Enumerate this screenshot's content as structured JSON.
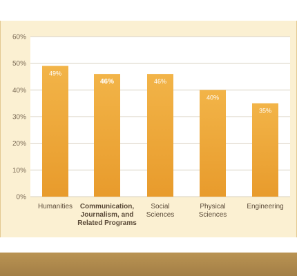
{
  "chart_data": {
    "type": "bar",
    "categories": [
      [
        "Humanities"
      ],
      [
        "Communication,",
        "Journalism, and",
        "Related Programs"
      ],
      [
        "Social",
        "Sciences"
      ],
      [
        "Physical",
        "Sciences"
      ],
      [
        "Engineering"
      ]
    ],
    "category_emphasis": [
      false,
      true,
      false,
      false,
      false
    ],
    "values": [
      49,
      46,
      46,
      40,
      35
    ],
    "value_labels": [
      "49%",
      "46%",
      "46%",
      "40%",
      "35%"
    ],
    "ylim": [
      0,
      60
    ],
    "yticks": [
      0,
      10,
      20,
      30,
      40,
      50,
      60
    ],
    "ytick_labels": [
      "0%",
      "10%",
      "20%",
      "30%",
      "40%",
      "50%",
      "60%"
    ],
    "grid": true,
    "title": "",
    "xlabel": "",
    "ylabel": "",
    "colors": {
      "bar_top": "#f2b448",
      "bar_bottom": "#e89b2c",
      "plot_background": "#ffffff",
      "grid": "#d8d0c0",
      "page_background": "#fbf0d2"
    }
  }
}
